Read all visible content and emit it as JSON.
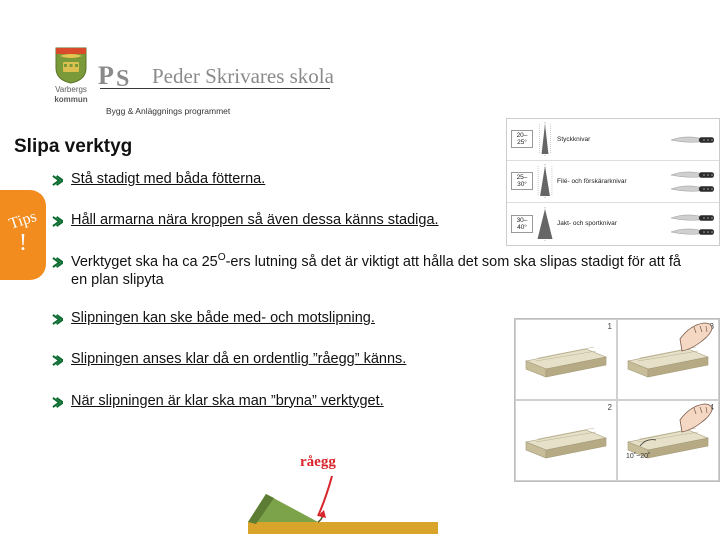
{
  "header": {
    "crest_label_1": "Varbergs",
    "crest_label_2": "kommun",
    "school_script": "Peder Skrivares skola",
    "subtitle": "Bygg & Anläggnings programmet",
    "crest_colors": {
      "shield": "#7a9a3a",
      "gold": "#e6c452",
      "top": "#d84a2a"
    }
  },
  "title": "Slipa verktyg",
  "bullet_color": "#0a6b2e",
  "bullets": [
    {
      "html": "<u>Stå stadigt med båda fötterna.</u>"
    },
    {
      "html": "<u>Håll armarna nära kroppen så även dessa känns stadiga.</u>"
    },
    {
      "html": "Verktyget ska ha ca 25<sup>O</sup>-ers lutning så det är viktigt att hålla det som ska slipas stadigt för att få en plan slipyta"
    },
    {
      "html": "<u>Slipningen  kan ske både med- och motslipning.</u>"
    },
    {
      "html": "<u>Slipningen anses klar då en ordentlig ”råegg” känns.</u>"
    },
    {
      "html": "<u>När slipningen är klar ska man ”bryna” verktyget.</u>"
    }
  ],
  "tips": {
    "label": "Tips",
    "bang": "!",
    "bg": "#f28c1e",
    "fg": "#ffffff"
  },
  "knives_figure": {
    "rows": [
      {
        "angle": "20–25°",
        "wedge_deg": 14,
        "label": "Styckknivar",
        "knives": 1
      },
      {
        "angle": "25–30°",
        "wedge_deg": 20,
        "label": "Filé- och förskärarknivar",
        "knives": 2
      },
      {
        "angle": "30–40°",
        "wedge_deg": 30,
        "label": "Jakt- och sportknivar",
        "knives": 2
      }
    ],
    "wedge_fill": "#666666",
    "guide_stroke": "#9a9a9a",
    "knife_handle": "#2b2b2b",
    "knife_blade": "#cfcfcf"
  },
  "sharp_grid": {
    "cells": [
      {
        "n": "1",
        "show_hand": false,
        "angle_label": ""
      },
      {
        "n": "3",
        "show_hand": true,
        "angle_label": ""
      },
      {
        "n": "2",
        "show_hand": false,
        "angle_label": ""
      },
      {
        "n": "4",
        "show_hand": true,
        "angle_label": "10˚~20˚"
      }
    ],
    "stone_top": "#e6e0c8",
    "stone_side": "#c8bd99",
    "hand_fill": "#f4d8c4",
    "hand_stroke": "#7a5a48"
  },
  "raegg": {
    "label": "råegg",
    "label_color": "#d8262c",
    "arrow_color": "#d8262c",
    "blade_color": "#7ca24a",
    "ground_color": "#d8a52a"
  }
}
